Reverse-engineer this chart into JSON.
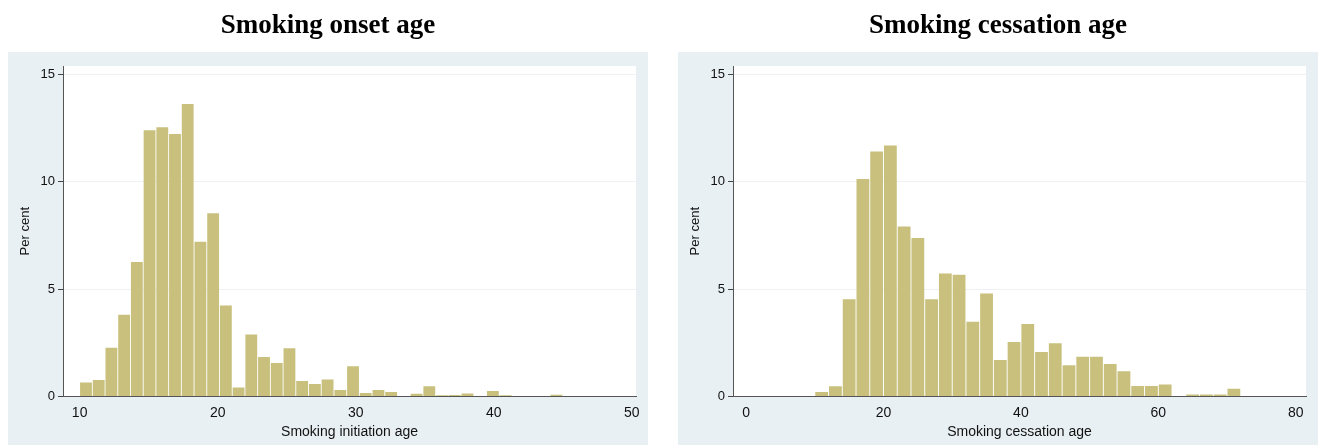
{
  "chart_data": [
    {
      "type": "histogram",
      "title": "Smoking onset age",
      "xlabel": "Smoking initiation age",
      "ylabel": "Per cent",
      "color": "#c8c07c",
      "bins": [
        10,
        10.921,
        11.842,
        12.763,
        13.684,
        14.605,
        15.526,
        16.447,
        17.368,
        18.289,
        19.211,
        20.132,
        21.053,
        21.974,
        22.895,
        23.816,
        24.737,
        25.658,
        26.579,
        27.5,
        28.421,
        29.342,
        30.263,
        31.184,
        32.105,
        33.026,
        33.947,
        34.868,
        35.789,
        36.711,
        37.632,
        38.553,
        39.474,
        40.395,
        41.316,
        42.237,
        43.158,
        44.079,
        45
      ],
      "values": [
        0.65,
        0.76,
        2.27,
        3.8,
        6.26,
        12.41,
        12.54,
        12.23,
        13.63,
        7.21,
        8.54,
        4.24,
        0.42,
        2.88,
        1.84,
        1.56,
        2.24,
        0.72,
        0.58,
        0.79,
        0.3,
        1.4,
        0.16,
        0.3,
        0.2,
        null,
        0.12,
        0.47,
        0.05,
        0.06,
        0.14,
        null,
        0.25,
        0.05,
        null,
        0.02,
        0.02,
        0.08
      ],
      "xlim": [
        8.8,
        50.3
      ],
      "ylim": [
        0,
        15.4
      ],
      "xticks": [
        10,
        20,
        30,
        40,
        50
      ],
      "yticks": [
        0,
        5,
        10,
        15
      ],
      "grid": "y"
    },
    {
      "type": "histogram",
      "title": "Smoking cessation age",
      "xlabel": "Smoking cessation age",
      "ylabel": "Per cent",
      "color": "#c8c07c",
      "bins": [
        10,
        12,
        14,
        16,
        18,
        20,
        22,
        24,
        26,
        28,
        30,
        32,
        34,
        36,
        38,
        40,
        42,
        44,
        46,
        48,
        50,
        52,
        54,
        56,
        58,
        60,
        62,
        64,
        66,
        68,
        70,
        72
      ],
      "values": [
        0.2,
        0.47,
        4.53,
        10.13,
        11.41,
        11.69,
        7.92,
        7.38,
        4.53,
        5.73,
        5.67,
        3.48,
        4.8,
        1.7,
        2.53,
        3.38,
        2.07,
        2.48,
        1.45,
        1.85,
        1.85,
        1.51,
        1.17,
        0.48,
        0.48,
        0.56,
        0,
        0.09,
        0.09,
        0.09,
        0.36
      ],
      "xlim": [
        -1.9,
        81.5
      ],
      "ylim": [
        0,
        15.4
      ],
      "xticks": [
        0,
        20,
        40,
        60,
        80
      ],
      "yticks": [
        0,
        5,
        10,
        15
      ],
      "grid": "y"
    }
  ]
}
